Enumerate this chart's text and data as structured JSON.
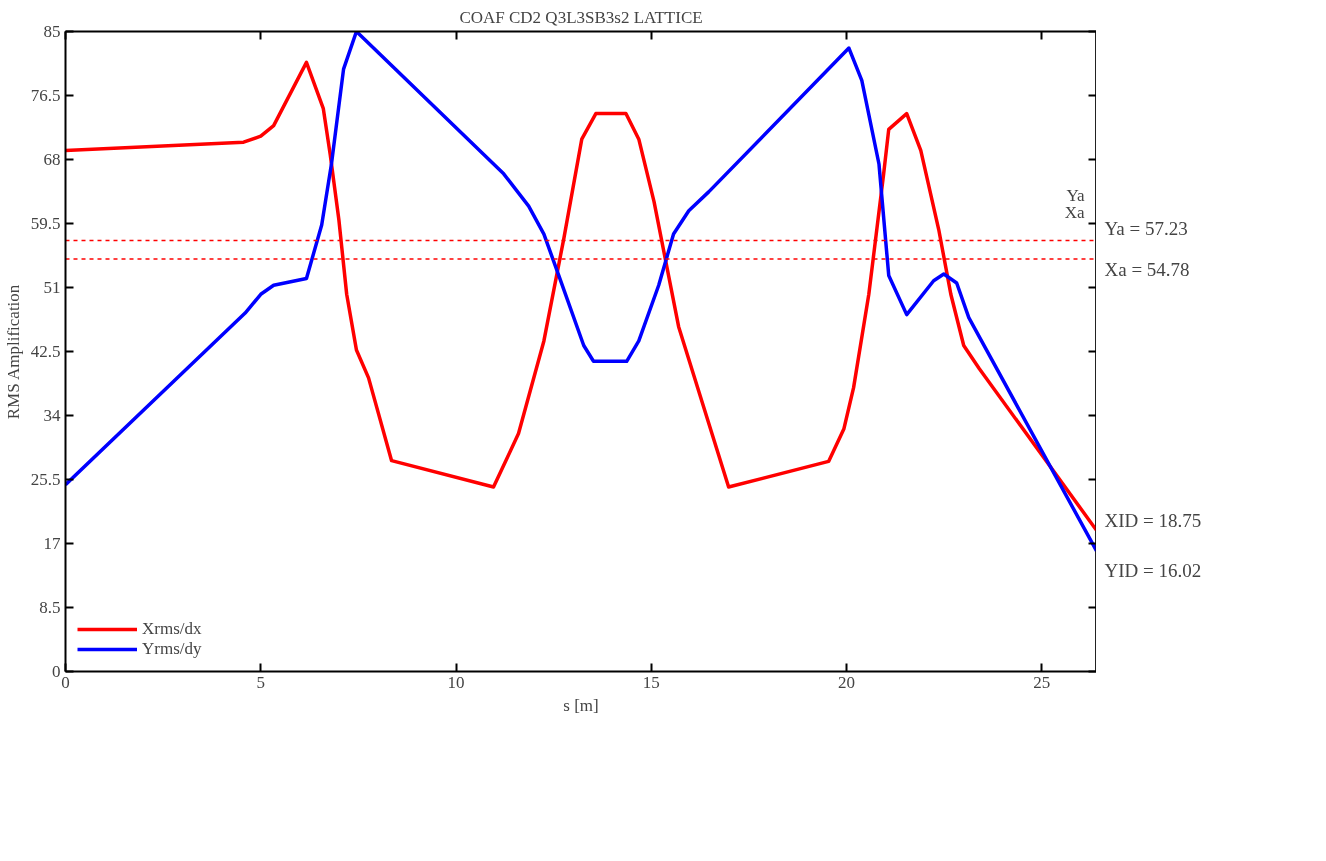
{
  "chart_data": {
    "type": "line",
    "title": "COAF CD2 Q3L3SB3s2 LATTICE",
    "xlabel": "s [m]",
    "ylabel": "RMS Amplification",
    "xlim": [
      0,
      26.4
    ],
    "xticks": [
      0,
      5,
      10,
      15,
      20,
      25
    ],
    "ylim": [
      0,
      85
    ],
    "yticks": [
      0,
      8.5,
      17,
      25.5,
      34,
      42.5,
      51,
      59.5,
      68,
      76.5,
      85
    ],
    "grid": false,
    "legend": "bottom left",
    "line_style": "solid",
    "marker": "none",
    "series": [
      {
        "name": "Xrms/dx",
        "color": "#ff0000",
        "x": [
          0,
          4.56,
          5.0,
          5.33,
          6.17,
          6.6,
          6.78,
          7.0,
          7.2,
          7.45,
          7.76,
          8.35,
          10.96,
          11.6,
          12.25,
          12.76,
          13.22,
          13.58,
          14.35,
          14.68,
          15.07,
          15.7,
          16.98,
          19.54,
          19.93,
          20.18,
          20.57,
          20.95,
          21.08,
          21.54,
          21.9,
          22.36,
          22.67,
          23.0,
          23.4,
          26.4
        ],
        "values": [
          69.2,
          70.3,
          71.1,
          72.5,
          80.9,
          74.8,
          68.6,
          60.0,
          50.1,
          42.7,
          39.0,
          28.0,
          24.5,
          31.6,
          43.9,
          57.5,
          70.7,
          74.1,
          74.1,
          70.7,
          62.4,
          45.8,
          24.5,
          27.9,
          32.2,
          37.7,
          50.1,
          66.1,
          72.0,
          74.1,
          69.2,
          58.7,
          50.1,
          43.3,
          40.2,
          18.75
        ]
      },
      {
        "name": "Yrms/dy",
        "color": "#0000ff",
        "x": [
          0,
          4.6,
          5.0,
          5.33,
          6.17,
          6.56,
          6.81,
          7.12,
          7.45,
          11.22,
          11.86,
          12.25,
          12.63,
          13.27,
          13.52,
          14.37,
          14.68,
          15.19,
          15.57,
          15.96,
          16.47,
          20.06,
          20.39,
          20.83,
          21.08,
          21.54,
          22.23,
          22.49,
          22.82,
          23.13,
          26.4
        ],
        "values": [
          24.8,
          47.6,
          50.1,
          51.3,
          52.2,
          59.3,
          67.4,
          80.0,
          85.0,
          66.1,
          61.8,
          58.1,
          52.6,
          43.3,
          41.2,
          41.2,
          43.9,
          51.3,
          58.1,
          61.2,
          63.7,
          82.8,
          78.5,
          67.4,
          52.6,
          47.4,
          51.9,
          52.8,
          51.6,
          47.0,
          16.02
        ]
      }
    ],
    "ref_lines": [
      {
        "axis": "y",
        "value": 57.23,
        "label": "Ya = 57.23",
        "color": "#ff0000",
        "line_style": "dashed"
      },
      {
        "axis": "y",
        "value": 54.78,
        "label": "Xa = 54.78",
        "color": "#ff0000",
        "line_style": "dashed"
      }
    ],
    "annotations": [
      "Ya",
      "Xa",
      {
        "text": "XID = 18.75",
        "x": 26.4,
        "y": 18.75
      },
      {
        "text": "YID = 16.02",
        "x": 26.4,
        "y": 16.02
      }
    ]
  }
}
